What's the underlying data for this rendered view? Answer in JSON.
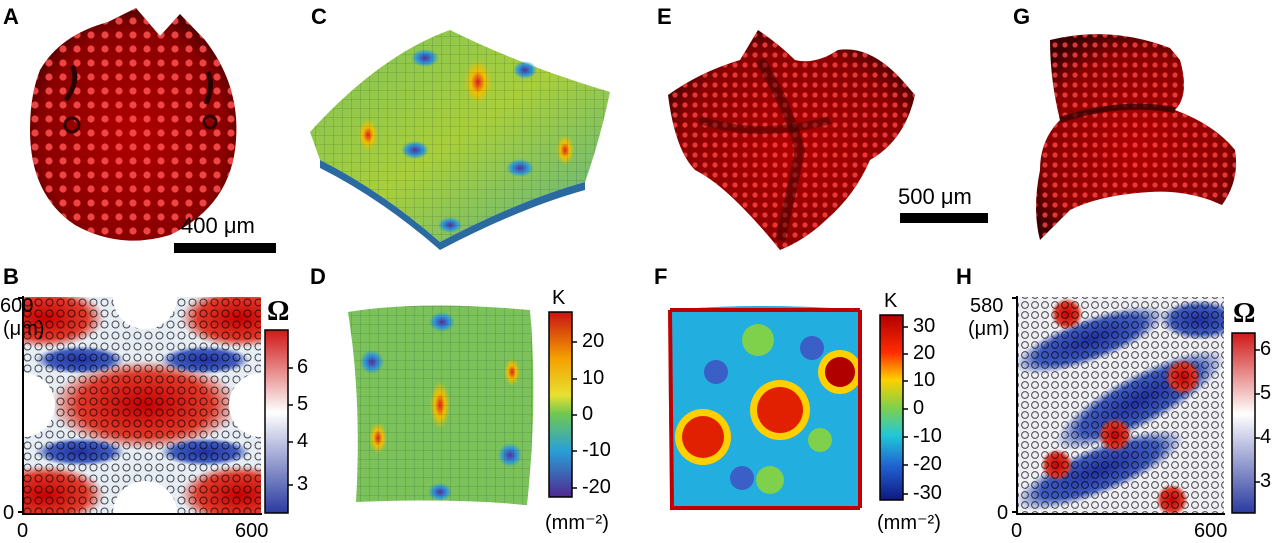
{
  "panels": {
    "a": {
      "letter": "A",
      "scale_bar": "400 μm"
    },
    "b": {
      "letter": "B",
      "y_ticks": [
        "0",
        "600"
      ],
      "x_ticks": [
        "0",
        "600"
      ],
      "unit": "(μm)",
      "colorbar": {
        "symbol": "Ω",
        "ticks": [
          "6",
          "5",
          "4",
          "3"
        ]
      }
    },
    "c": {
      "letter": "C"
    },
    "d": {
      "letter": "D",
      "colorbar": {
        "symbol": "K",
        "ticks": [
          "20",
          "10",
          "0",
          "-10",
          "-20"
        ],
        "unit": "(mm⁻²)"
      }
    },
    "e": {
      "letter": "E",
      "scale_bar": "500 μm"
    },
    "f": {
      "letter": "F",
      "colorbar": {
        "symbol": "K",
        "ticks": [
          "30",
          "20",
          "10",
          "0",
          "-10",
          "-20",
          "-30"
        ],
        "unit": "(mm⁻²)"
      }
    },
    "g": {
      "letter": "G"
    },
    "h": {
      "letter": "H",
      "y_ticks": [
        "0",
        "580"
      ],
      "x_ticks": [
        "0",
        "600"
      ],
      "unit": "(μm)",
      "colorbar": {
        "symbol": "Ω",
        "ticks": [
          "6",
          "5",
          "4",
          "3"
        ]
      }
    }
  },
  "colors": {
    "photo_red": "#b00000",
    "omega_high": "#d01818",
    "omega_low": "#2a3aa0",
    "k_high": "#c81414",
    "k_low": "#502890"
  }
}
